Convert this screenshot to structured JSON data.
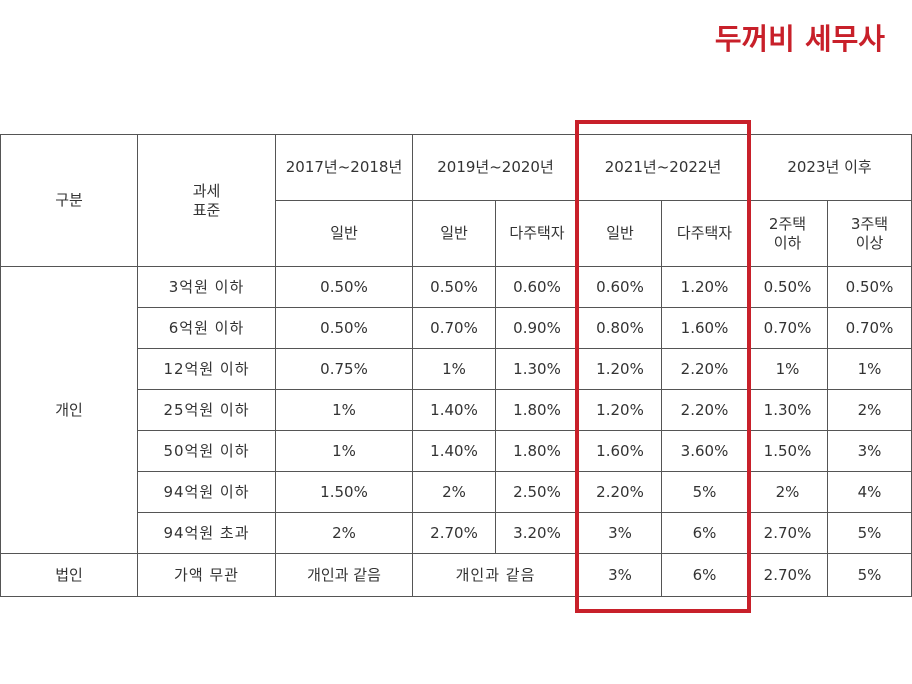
{
  "brand": "두꺼비 세무사",
  "colors": {
    "brand_red": "#c8202a",
    "highlight_red": "#c8202a",
    "grid": "#555555",
    "text": "#333333"
  },
  "table": {
    "header": {
      "category": "구분",
      "tax_base": "과세\n표준",
      "periods": [
        "2017년~2018년",
        "2019년~2020년",
        "2021년~2022년",
        "2023년 이후"
      ],
      "sub": {
        "p1_general": "일반",
        "p2_general": "일반",
        "p2_multi": "다주택자",
        "p3_general": "일반",
        "p3_multi": "다주택자",
        "p4_two_or_less": "2주택\n이하",
        "p4_three_or_more": "3주택\n이상"
      }
    },
    "individual_label": "개인",
    "individual_rows": [
      {
        "base": "3억원 이하",
        "v": [
          "0.50%",
          "0.50%",
          "0.60%",
          "0.60%",
          "1.20%",
          "0.50%",
          "0.50%"
        ]
      },
      {
        "base": "6억원 이하",
        "v": [
          "0.50%",
          "0.70%",
          "0.90%",
          "0.80%",
          "1.60%",
          "0.70%",
          "0.70%"
        ]
      },
      {
        "base": "12억원 이하",
        "v": [
          "0.75%",
          "1%",
          "1.30%",
          "1.20%",
          "2.20%",
          "1%",
          "1%"
        ]
      },
      {
        "base": "25억원 이하",
        "v": [
          "1%",
          "1.40%",
          "1.80%",
          "1.20%",
          "2.20%",
          "1.30%",
          "2%"
        ]
      },
      {
        "base": "50억원 이하",
        "v": [
          "1%",
          "1.40%",
          "1.80%",
          "1.60%",
          "3.60%",
          "1.50%",
          "3%"
        ]
      },
      {
        "base": "94억원 이하",
        "v": [
          "1.50%",
          "2%",
          "2.50%",
          "2.20%",
          "5%",
          "2%",
          "4%"
        ]
      },
      {
        "base": "94억원 초과",
        "v": [
          "2%",
          "2.70%",
          "3.20%",
          "3%",
          "6%",
          "2.70%",
          "5%"
        ]
      }
    ],
    "corporate": {
      "label": "법인",
      "base": "가액 무관",
      "p1": "개인과 같음",
      "p2": "개인과 같음",
      "v": [
        "3%",
        "6%",
        "2.70%",
        "5%"
      ]
    }
  }
}
